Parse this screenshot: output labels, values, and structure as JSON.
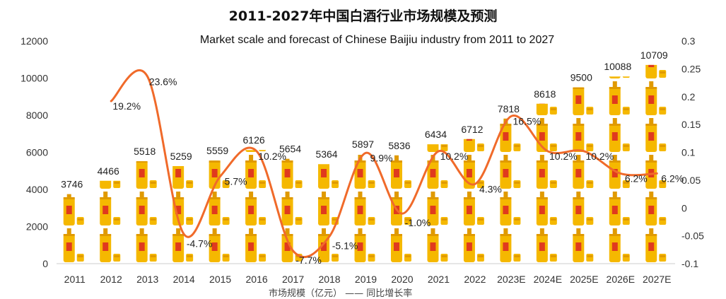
{
  "chart_data": {
    "type": "bar",
    "title": "2011-2027年中国白酒行业市场规模及预测",
    "subtitle": "Market scale and forecast of Chinese Baijiu industry from 2011 to 2027",
    "categories": [
      "2011",
      "2012",
      "2013",
      "2014",
      "2015",
      "2016",
      "2017",
      "2018",
      "2019",
      "2020",
      "2021",
      "2022",
      "2023E",
      "2024E",
      "2025E",
      "2026E",
      "2027E"
    ],
    "series": [
      {
        "name": "市场规模（亿元）",
        "type": "bar",
        "axis": "left",
        "values": [
          3746,
          4466,
          5518,
          5259,
          5559,
          6126,
          5654,
          5364,
          5897,
          5836,
          6434,
          6712,
          7818,
          8618,
          9500,
          10088,
          10709
        ],
        "labels": [
          "3746",
          "4466",
          "5518",
          "5259",
          "5559",
          "6126",
          "5654",
          "5364",
          "5897",
          "5836",
          "6434",
          "6712",
          "7818",
          "8618",
          "9500",
          "10088",
          "10709"
        ]
      },
      {
        "name": "同比增长率",
        "type": "line",
        "axis": "right",
        "values": [
          null,
          0.192,
          0.236,
          -0.047,
          0.057,
          0.102,
          -0.077,
          -0.051,
          0.099,
          -0.01,
          0.102,
          0.043,
          0.165,
          0.102,
          0.102,
          0.062,
          0.062
        ],
        "labels": [
          "",
          "19.2%",
          "23.6%",
          "-4.7%",
          "5.7%",
          "10.2%",
          "-7.7%",
          "-5.1%",
          "9.9%",
          "-1.0%",
          "10.2%",
          "4.3%",
          "16.5%",
          "10.2%",
          "10.2%",
          "6.2%",
          "6.2%"
        ]
      }
    ],
    "y_left": {
      "ylim": [
        0,
        12000
      ],
      "ticks": [
        "0",
        "2000",
        "4000",
        "6000",
        "8000",
        "10000",
        "12000"
      ]
    },
    "y_right": {
      "ylim": [
        -0.1,
        0.3
      ],
      "ticks": [
        "-0.1",
        "-0.05",
        "0",
        "0.05",
        "0.1",
        "0.15",
        "0.2",
        "0.25",
        "0.3"
      ]
    },
    "legend_text": "市场规模（亿元） —— 同比增长率",
    "colors": {
      "bottle": "#f5b800",
      "bottle_dark": "#e09a00",
      "bottle_label": "#e03a1e",
      "line": "#f06a2a",
      "axis": "#cccccc"
    },
    "grid": false,
    "legend_position": "bottom"
  }
}
